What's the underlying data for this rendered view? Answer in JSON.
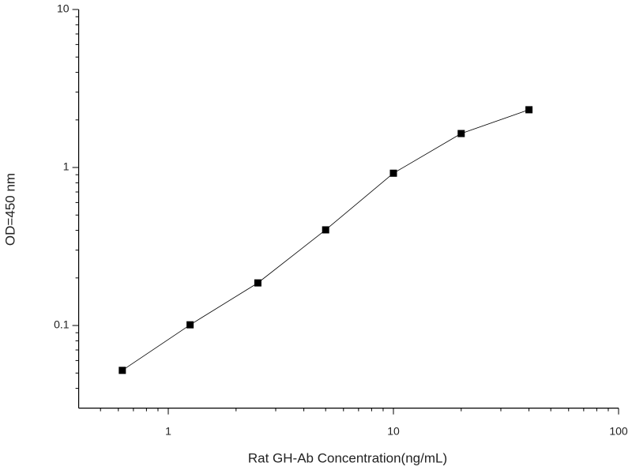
{
  "chart_data": {
    "type": "line",
    "x_label": "Rat GH-Ab Concentration(ng/mL)",
    "y_label": "OD=450 nm",
    "x": [
      0.625,
      1.25,
      2.5,
      5,
      10,
      20,
      40
    ],
    "series": [
      {
        "color": "#000000",
        "values": [
          0.052,
          0.101,
          0.186,
          0.403,
          0.92,
          1.64,
          2.32
        ]
      }
    ],
    "xlim": [
      0.4,
      100
    ],
    "ylim": [
      0.03,
      10
    ],
    "xticks": [
      1,
      10,
      100
    ],
    "yticks": [
      0.1,
      1,
      10
    ],
    "xminorticks": [
      0.5,
      0.6,
      0.7,
      0.8,
      0.9,
      2,
      3,
      4,
      5,
      6,
      7,
      8,
      9,
      20,
      30,
      40,
      50,
      60,
      70,
      80,
      90
    ],
    "yminorticks": [
      0.04,
      0.05,
      0.06,
      0.07,
      0.08,
      0.09,
      0.2,
      0.3,
      0.4,
      0.5,
      0.6,
      0.7,
      0.8,
      0.9,
      2,
      3,
      4,
      5,
      6,
      7,
      8,
      9
    ],
    "xscale": "log",
    "yscale": "log",
    "markers": true
  }
}
